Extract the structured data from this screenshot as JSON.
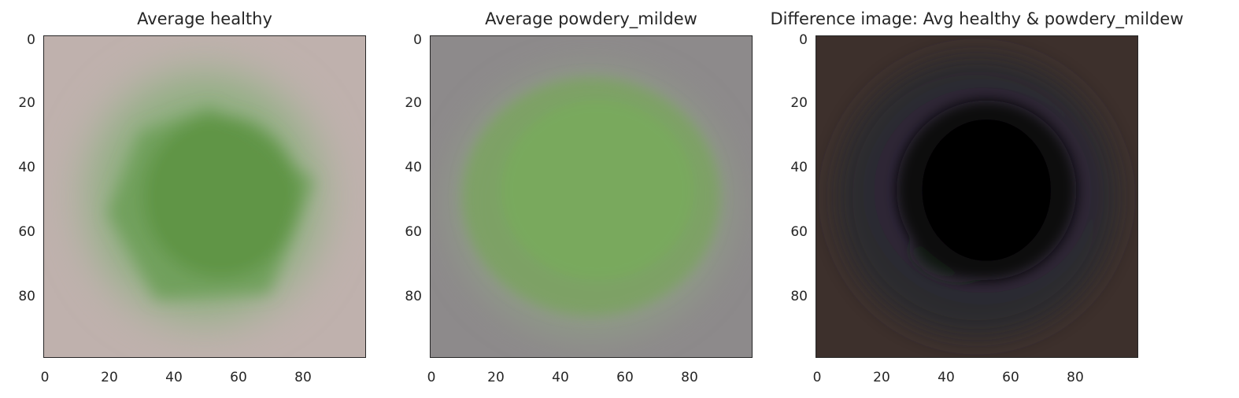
{
  "panels": [
    {
      "title": "Average healthy"
    },
    {
      "title": "Average powdery_mildew"
    },
    {
      "title": "Difference image: Avg healthy & powdery_mildew"
    }
  ],
  "axes": {
    "yticks": [
      "0",
      "20",
      "40",
      "60",
      "80"
    ],
    "xticks": [
      "0",
      "20",
      "40",
      "60",
      "80"
    ]
  },
  "colors": {
    "healthy_background": "#bfb1ad",
    "healthy_leaf": "#5e9545",
    "mildew_background": "#8d8a8b",
    "mildew_leaf": "#78ab5d",
    "difference_background": "#3d302c",
    "difference_center": "#000000",
    "axis_color": "#262626"
  }
}
